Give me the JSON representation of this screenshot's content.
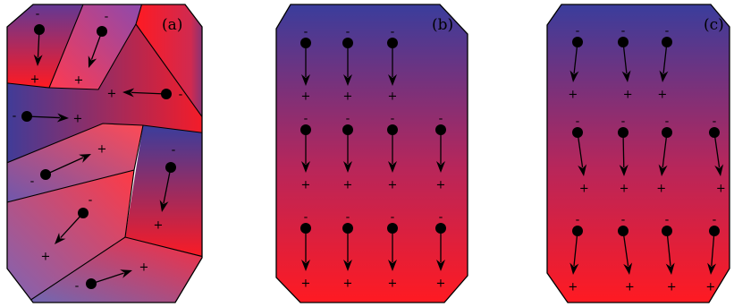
{
  "panels": [
    {
      "id": "a",
      "label": "(a)"
    },
    {
      "id": "b",
      "label": "(b)"
    },
    {
      "id": "c",
      "label": "(c)"
    }
  ],
  "symbols": {
    "negative": "-",
    "positive": "+"
  },
  "colors": {
    "blue": "#3a3d9c",
    "red": "#ff1a22",
    "outline": "#000000"
  }
}
